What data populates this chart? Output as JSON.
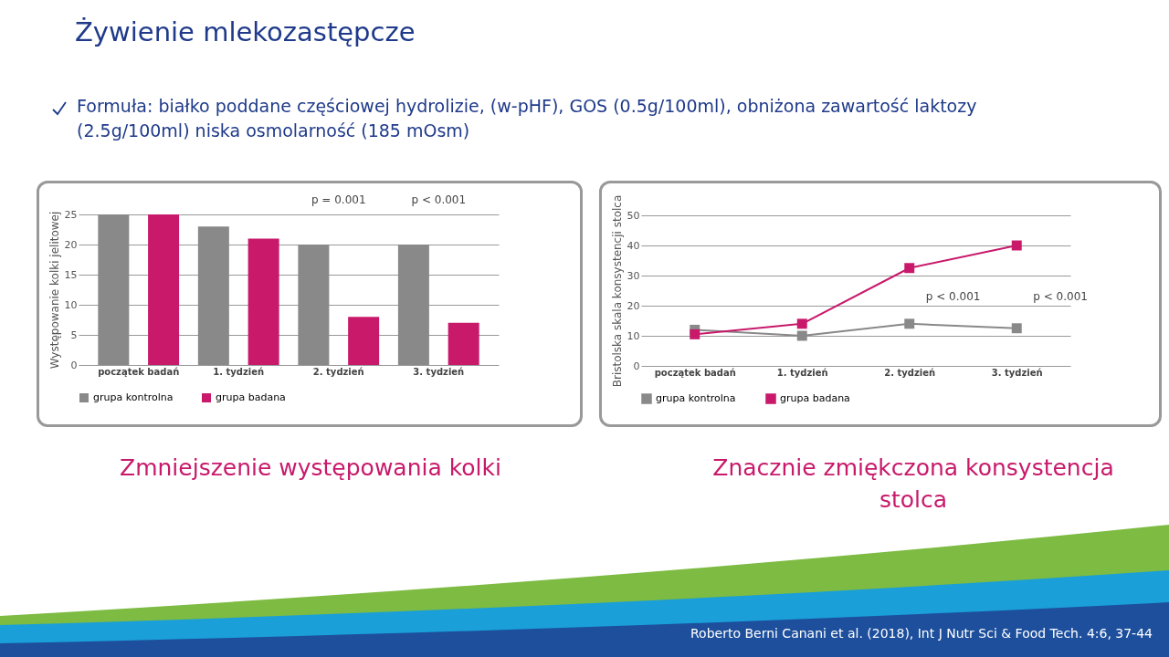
{
  "chart_data": [
    {
      "type": "other",
      "title": "Żywienie mlekozastępcze",
      "annotations": [
        "Formuła: białko poddane częściowej hydrolizie, (w-pHF), GOS (0.5g/100ml), obniżona zawartość laktozy (2.5g/100ml) niska osmolarność (185 mOsm)",
        "Roberto Berni Canani et al. (2018), Int J Nutr Sci & Food Tech. 4:6, 37-44"
      ]
    },
    {
      "type": "bar",
      "title": "Zmniejszenie występowania kolki",
      "ylabel": "Występowanie kolki jelitowej",
      "categories": [
        "początek badań",
        "1. tydzień",
        "2. tydzień",
        "3. tydzień"
      ],
      "series": [
        {
          "name": "grupa kontrolna",
          "color": "#898989",
          "values": [
            25,
            23,
            20,
            20
          ]
        },
        {
          "name": "grupa badana",
          "color": "#c8196b",
          "values": [
            25,
            21,
            8,
            7
          ]
        }
      ],
      "ylim": [
        0,
        25
      ],
      "yticks": [
        0,
        5,
        10,
        15,
        20,
        25
      ],
      "grid": "y",
      "legend": "bottom",
      "annotations": [
        "p = 0.001",
        "p < 0.001"
      ]
    },
    {
      "type": "line",
      "title": "Znacznie zmiękczona konsystencja stolca",
      "ylabel": "Bristolska skala konsystencji stolca",
      "categories": [
        "początek badań",
        "1. tydzień",
        "2. tydzień",
        "3. tydzień"
      ],
      "series": [
        {
          "name": "grupa kontrolna",
          "color": "#898989",
          "values": [
            12,
            10,
            14,
            12.5
          ]
        },
        {
          "name": "grupa badana",
          "color": "#c8196b",
          "values": [
            10.5,
            14,
            32.5,
            40
          ]
        }
      ],
      "ylim": [
        0,
        50
      ],
      "yticks": [
        0,
        10,
        20,
        30,
        40,
        50
      ],
      "grid": "y",
      "legend": "bottom",
      "marker": "square",
      "line_style": "solid",
      "annotations": [
        "p < 0.001",
        "p < 0.001"
      ]
    }
  ]
}
